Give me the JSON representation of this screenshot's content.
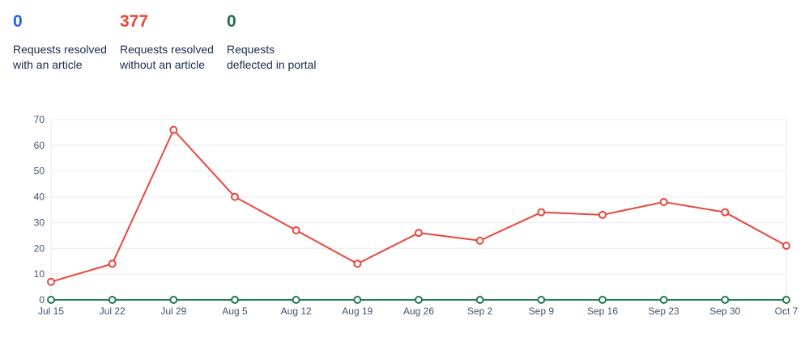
{
  "stats": [
    {
      "id": "resolved-with-article",
      "value": "0",
      "label": "Requests resolved\nwith an article",
      "color": "#2563EB"
    },
    {
      "id": "resolved-without-article",
      "value": "377",
      "label": "Requests resolved\nwithout an article",
      "color": "#E8473B"
    },
    {
      "id": "deflected-in-portal",
      "value": "0",
      "label": "Requests\ndeflected in portal",
      "color": "#216E4E"
    }
  ],
  "chart_data": {
    "type": "line",
    "x": [
      "Jul 15",
      "Jul 22",
      "Jul 29",
      "Aug 5",
      "Aug 12",
      "Aug 19",
      "Aug 26",
      "Sep 2",
      "Sep 9",
      "Sep 16",
      "Sep 23",
      "Sep 30",
      "Oct 7"
    ],
    "series": [
      {
        "name": "requests-resolved-without-article",
        "color": "#E8473B",
        "values": [
          7,
          14,
          66,
          40,
          27,
          14,
          26,
          23,
          34,
          33,
          38,
          34,
          21
        ]
      },
      {
        "name": "requests-deflected-in-portal",
        "color": "#1E7B4F",
        "values": [
          0,
          0,
          0,
          0,
          0,
          0,
          0,
          0,
          0,
          0,
          0,
          0,
          0
        ]
      }
    ],
    "title": "",
    "xlabel": "",
    "ylabel": "",
    "ylim": [
      0,
      70
    ],
    "yticks": [
      0,
      10,
      20,
      30,
      40,
      50,
      60,
      70
    ],
    "grid": true,
    "legend": "none",
    "colors": {
      "gridline": "#EBECF0",
      "plot_border": "#E4E6EA",
      "axis_label": "#42526E",
      "marker_fill": "#FFFFFF"
    }
  }
}
